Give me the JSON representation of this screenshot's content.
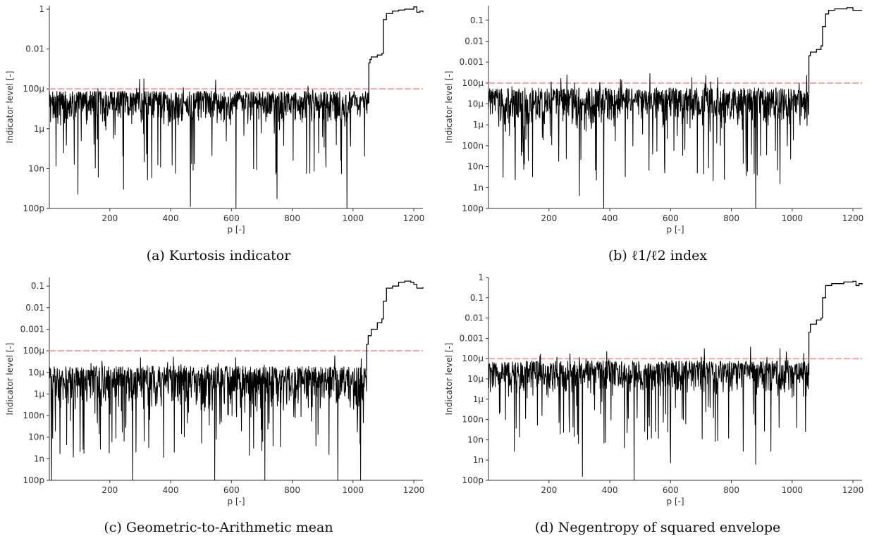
{
  "colors": {
    "series": "#000000",
    "threshold": "#f4a6a6",
    "axis": "#333333"
  },
  "threshold_label_value": 0.0001,
  "chart_data": [
    {
      "type": "line",
      "caption": "(a) Kurtosis indicator",
      "xlabel": "p [-]",
      "ylabel": "Indicator level [-]",
      "xlim": [
        1,
        1230
      ],
      "ylim": [
        1e-10,
        1.5
      ],
      "y_scale": "log",
      "x_ticks": [
        200,
        400,
        600,
        800,
        1000,
        1200
      ],
      "y_ticks": [
        {
          "value": 1e-10,
          "label": "100p"
        },
        {
          "value": 1e-08,
          "label": "10n"
        },
        {
          "value": 1e-06,
          "label": "1μ"
        },
        {
          "value": 0.0001,
          "label": "100μ"
        },
        {
          "value": 0.01,
          "label": "0.01"
        },
        {
          "value": 1,
          "label": "1"
        }
      ],
      "threshold": 0.0001,
      "noise_region": {
        "x_start": 1,
        "x_end": 1052,
        "typical_low": 1e-06,
        "typical_high": 8e-05,
        "min": 1e-10,
        "max": 0.0004
      },
      "high_region": [
        [
          1052,
          0.002
        ],
        [
          1056,
          0.003
        ],
        [
          1060,
          0.004
        ],
        [
          1070,
          0.004
        ],
        [
          1080,
          0.005
        ],
        [
          1090,
          0.005
        ],
        [
          1095,
          0.006
        ],
        [
          1100,
          0.3
        ],
        [
          1110,
          0.6
        ],
        [
          1130,
          0.8
        ],
        [
          1150,
          0.9
        ],
        [
          1170,
          1.0
        ],
        [
          1190,
          1.0
        ],
        [
          1200,
          1.3
        ],
        [
          1210,
          0.7
        ],
        [
          1220,
          0.8
        ],
        [
          1230,
          0.7
        ]
      ],
      "spikes_down": [
        [
          95,
          5e-10
        ],
        [
          245,
          9e-10
        ],
        [
          465,
          1.2e-10
        ],
        [
          615,
          1e-10
        ],
        [
          750,
          3e-10
        ],
        [
          980,
          1e-10
        ]
      ]
    },
    {
      "type": "line",
      "caption": "(b) ℓ1/ℓ2 index",
      "xlabel": "p [-]",
      "ylabel": "Indicator level [-]",
      "xlim": [
        1,
        1230
      ],
      "ylim": [
        1e-10,
        0.5
      ],
      "y_scale": "log",
      "x_ticks": [
        200,
        400,
        600,
        800,
        1000,
        1200
      ],
      "y_ticks": [
        {
          "value": 1e-10,
          "label": "100p"
        },
        {
          "value": 1e-09,
          "label": "1n"
        },
        {
          "value": 1e-08,
          "label": "10n"
        },
        {
          "value": 1e-07,
          "label": "100n"
        },
        {
          "value": 1e-06,
          "label": "1μ"
        },
        {
          "value": 1e-05,
          "label": "10μ"
        },
        {
          "value": 0.0001,
          "label": "100μ"
        },
        {
          "value": 0.001,
          "label": "0.001"
        },
        {
          "value": 0.01,
          "label": "0.01"
        },
        {
          "value": 0.1,
          "label": "0.1"
        }
      ],
      "threshold": 0.0001,
      "noise_region": {
        "x_start": 1,
        "x_end": 1055,
        "typical_low": 5e-07,
        "typical_high": 6e-05,
        "min": 1e-10,
        "max": 0.0003
      },
      "high_region": [
        [
          1055,
          0.002
        ],
        [
          1060,
          0.003
        ],
        [
          1080,
          0.004
        ],
        [
          1095,
          0.006
        ],
        [
          1100,
          0.05
        ],
        [
          1110,
          0.2
        ],
        [
          1120,
          0.3
        ],
        [
          1140,
          0.35
        ],
        [
          1160,
          0.35
        ],
        [
          1180,
          0.4
        ],
        [
          1200,
          0.3
        ],
        [
          1220,
          0.3
        ],
        [
          1230,
          0.3
        ]
      ],
      "spikes_down": [
        [
          300,
          4e-10
        ],
        [
          380,
          1e-10
        ],
        [
          880,
          1e-10
        ],
        [
          960,
          1.5e-09
        ]
      ]
    },
    {
      "type": "line",
      "caption": "(c) Geometric-to-Arithmetic mean",
      "xlabel": "p [-]",
      "ylabel": "Indicator level [-]",
      "xlim": [
        1,
        1230
      ],
      "ylim": [
        1e-10,
        0.25
      ],
      "y_scale": "log",
      "x_ticks": [
        200,
        400,
        600,
        800,
        1000,
        1200
      ],
      "y_ticks": [
        {
          "value": 1e-10,
          "label": "100p"
        },
        {
          "value": 1e-09,
          "label": "1n"
        },
        {
          "value": 1e-08,
          "label": "10n"
        },
        {
          "value": 1e-07,
          "label": "100n"
        },
        {
          "value": 1e-06,
          "label": "1μ"
        },
        {
          "value": 1e-05,
          "label": "10μ"
        },
        {
          "value": 0.0001,
          "label": "100μ"
        },
        {
          "value": 0.001,
          "label": "0.001"
        },
        {
          "value": 0.01,
          "label": "0.01"
        },
        {
          "value": 0.1,
          "label": "0.1"
        }
      ],
      "threshold": 0.0001,
      "noise_region": {
        "x_start": 1,
        "x_end": 1045,
        "typical_low": 1e-07,
        "typical_high": 2e-05,
        "min": 1e-10,
        "max": 7e-05
      },
      "high_region": [
        [
          1045,
          0.0002
        ],
        [
          1050,
          0.0005
        ],
        [
          1060,
          0.001
        ],
        [
          1080,
          0.002
        ],
        [
          1095,
          0.003
        ],
        [
          1100,
          0.02
        ],
        [
          1110,
          0.08
        ],
        [
          1130,
          0.1
        ],
        [
          1150,
          0.15
        ],
        [
          1170,
          0.17
        ],
        [
          1190,
          0.15
        ],
        [
          1200,
          0.12
        ],
        [
          1210,
          0.08
        ],
        [
          1230,
          0.09
        ]
      ],
      "spikes_down": [
        [
          8,
          1e-10
        ],
        [
          275,
          1e-10
        ],
        [
          545,
          1e-10
        ],
        [
          710,
          1e-10
        ],
        [
          950,
          1e-10
        ],
        [
          1025,
          1e-10
        ]
      ]
    },
    {
      "type": "line",
      "caption": "(d) Negentropy of squared envelope",
      "xlabel": "p [-]",
      "ylabel": "Indicator level [-]",
      "xlim": [
        1,
        1230
      ],
      "ylim": [
        1e-10,
        1.0
      ],
      "y_scale": "log",
      "x_ticks": [
        200,
        400,
        600,
        800,
        1000,
        1200
      ],
      "y_ticks": [
        {
          "value": 1e-10,
          "label": "100p"
        },
        {
          "value": 1e-09,
          "label": "1n"
        },
        {
          "value": 1e-08,
          "label": "10n"
        },
        {
          "value": 1e-07,
          "label": "100n"
        },
        {
          "value": 1e-06,
          "label": "1μ"
        },
        {
          "value": 1e-05,
          "label": "10μ"
        },
        {
          "value": 0.0001,
          "label": "100μ"
        },
        {
          "value": 0.001,
          "label": "0.001"
        },
        {
          "value": 0.01,
          "label": "0.01"
        },
        {
          "value": 0.1,
          "label": "0.1"
        },
        {
          "value": 1,
          "label": "1"
        }
      ],
      "threshold": 0.0001,
      "noise_region": {
        "x_start": 1,
        "x_end": 1055,
        "typical_low": 1e-06,
        "typical_high": 8e-05,
        "min": 1e-10,
        "max": 0.0004
      },
      "high_region": [
        [
          1055,
          0.002
        ],
        [
          1060,
          0.005
        ],
        [
          1080,
          0.008
        ],
        [
          1095,
          0.01
        ],
        [
          1100,
          0.1
        ],
        [
          1110,
          0.4
        ],
        [
          1130,
          0.5
        ],
        [
          1150,
          0.5
        ],
        [
          1170,
          0.6
        ],
        [
          1190,
          0.6
        ],
        [
          1200,
          0.65
        ],
        [
          1210,
          0.4
        ],
        [
          1220,
          0.5
        ],
        [
          1230,
          0.45
        ]
      ],
      "spikes_down": [
        [
          310,
          1.5e-10
        ],
        [
          480,
          1e-10
        ],
        [
          600,
          7e-10
        ],
        [
          880,
          6e-10
        ]
      ]
    }
  ]
}
